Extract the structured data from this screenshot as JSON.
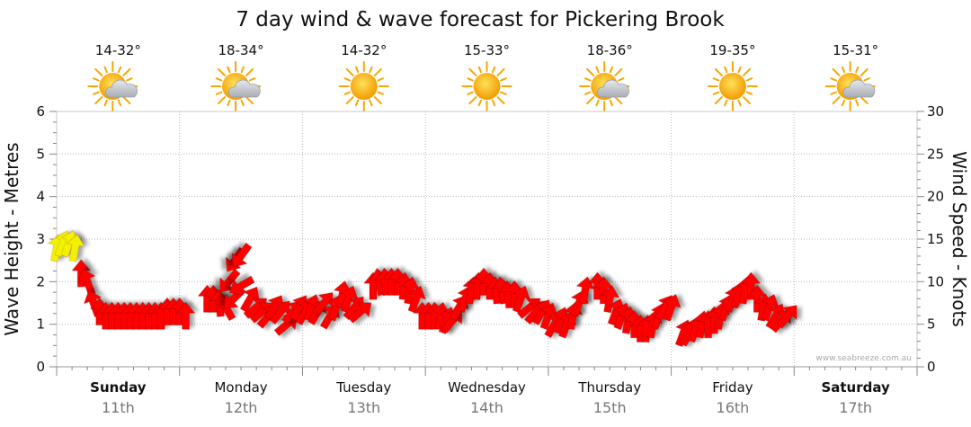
{
  "title": "7 day wind & wave forecast for Pickering Brook",
  "watermark": "www.seabreeze.com.au",
  "colors": {
    "arrow_light": "#f2f200",
    "arrow_strong": "#ff0000",
    "sun": "#f5a800",
    "cloud": "#b8bcc4"
  },
  "chart_data": {
    "type": "line",
    "title": "7 day wind & wave forecast for Pickering Brook",
    "ylabel_left": "Wave Height - Metres",
    "ylabel_right": "Wind Speed - Knots",
    "ylim_left": [
      0,
      6
    ],
    "ylim_right": [
      0,
      30
    ],
    "yticks_left": [
      "0",
      "1",
      "2",
      "3",
      "4",
      "5",
      "6"
    ],
    "yticks_right": [
      "0",
      "5",
      "10",
      "15",
      "20",
      "25",
      "30"
    ],
    "grid": true,
    "days": [
      {
        "name": "Sunday",
        "date": "11th",
        "bold": true,
        "temp": "14-32°",
        "icon": "partly-cloudy-icon"
      },
      {
        "name": "Monday",
        "date": "12th",
        "bold": false,
        "temp": "18-34°",
        "icon": "partly-cloudy-icon"
      },
      {
        "name": "Tuesday",
        "date": "13th",
        "bold": false,
        "temp": "14-32°",
        "icon": "sunny-icon"
      },
      {
        "name": "Wednesday",
        "date": "14th",
        "bold": false,
        "temp": "15-33°",
        "icon": "sunny-icon"
      },
      {
        "name": "Thursday",
        "date": "15th",
        "bold": false,
        "temp": "18-36°",
        "icon": "partly-cloudy-icon"
      },
      {
        "name": "Friday",
        "date": "16th",
        "bold": false,
        "temp": "19-35°",
        "icon": "sunny-icon"
      },
      {
        "name": "Saturday",
        "date": "17th",
        "bold": true,
        "temp": "15-31°",
        "icon": "partly-cloudy-icon"
      }
    ],
    "series": [
      {
        "name": "Wind Speed",
        "x_unit": "day",
        "points": [
          {
            "x": 0.0,
            "knots": 14,
            "dir": 190
          },
          {
            "x": 0.1,
            "knots": 14.5,
            "dir": 200
          },
          {
            "x": 0.2,
            "knots": 14.5,
            "dir": 200
          },
          {
            "x": 0.3,
            "knots": 14,
            "dir": 190
          },
          {
            "x": 0.4,
            "knots": 11,
            "dir": 180
          },
          {
            "x": 0.5,
            "knots": 10,
            "dir": 160
          },
          {
            "x": 0.6,
            "knots": 7.5,
            "dir": 160
          },
          {
            "x": 0.7,
            "knots": 6.5,
            "dir": 180
          },
          {
            "x": 0.8,
            "knots": 6,
            "dir": 180
          },
          {
            "x": 0.9,
            "knots": 6,
            "dir": 180
          },
          {
            "x": 1.0,
            "knots": 6,
            "dir": 180
          },
          {
            "x": 1.1,
            "knots": 6,
            "dir": 180
          },
          {
            "x": 1.2,
            "knots": 6,
            "dir": 180
          },
          {
            "x": 1.3,
            "knots": 6,
            "dir": 180
          },
          {
            "x": 1.4,
            "knots": 6,
            "dir": 180
          },
          {
            "x": 1.5,
            "knots": 6,
            "dir": 180
          },
          {
            "x": 1.6,
            "knots": 6,
            "dir": 180
          },
          {
            "x": 1.7,
            "knots": 6,
            "dir": 180
          },
          {
            "x": 1.8,
            "knots": 6.5,
            "dir": 180
          },
          {
            "x": 1.9,
            "knots": 6.5,
            "dir": 180
          },
          {
            "x": 2.0,
            "knots": 6.5,
            "dir": 180
          },
          {
            "x": 2.1,
            "knots": 6,
            "dir": 180
          },
          {
            "x": 2.45,
            "knots": 8,
            "dir": 180
          },
          {
            "x": 2.55,
            "knots": 8,
            "dir": 180
          },
          {
            "x": 2.65,
            "knots": 7.5,
            "dir": 175
          },
          {
            "x": 2.75,
            "knots": 7,
            "dir": 150
          },
          {
            "x": 2.8,
            "knots": 10,
            "dir": 40
          },
          {
            "x": 2.9,
            "knots": 12.5,
            "dir": 35
          },
          {
            "x": 3.0,
            "knots": 13,
            "dir": 35
          },
          {
            "x": 2.88,
            "knots": 8,
            "dir": 45
          },
          {
            "x": 3.0,
            "knots": 9.5,
            "dir": 60
          },
          {
            "x": 3.15,
            "knots": 8,
            "dir": 210
          },
          {
            "x": 3.25,
            "knots": 7,
            "dir": 230
          },
          {
            "x": 3.35,
            "knots": 6.5,
            "dir": 230
          },
          {
            "x": 3.45,
            "knots": 6,
            "dir": 220
          },
          {
            "x": 3.55,
            "knots": 7,
            "dir": 210
          },
          {
            "x": 3.65,
            "knots": 6.5,
            "dir": 220
          },
          {
            "x": 3.75,
            "knots": 5,
            "dir": 230
          },
          {
            "x": 3.85,
            "knots": 6.5,
            "dir": 220
          },
          {
            "x": 3.95,
            "knots": 7,
            "dir": 210
          },
          {
            "x": 4.05,
            "knots": 6.5,
            "dir": 210
          },
          {
            "x": 4.15,
            "knots": 7,
            "dir": 200
          },
          {
            "x": 4.25,
            "knots": 6.5,
            "dir": 210
          },
          {
            "x": 4.35,
            "knots": 7.5,
            "dir": 220
          },
          {
            "x": 4.45,
            "knots": 6,
            "dir": 210
          },
          {
            "x": 4.55,
            "knots": 7,
            "dir": 200
          },
          {
            "x": 4.65,
            "knots": 8.5,
            "dir": 190
          },
          {
            "x": 4.75,
            "knots": 8,
            "dir": 200
          },
          {
            "x": 4.85,
            "knots": 7,
            "dir": 220
          },
          {
            "x": 4.95,
            "knots": 6.5,
            "dir": 230
          },
          {
            "x": 5.15,
            "knots": 9.5,
            "dir": 180
          },
          {
            "x": 5.25,
            "knots": 10,
            "dir": 170
          },
          {
            "x": 5.35,
            "knots": 10,
            "dir": 175
          },
          {
            "x": 5.45,
            "knots": 10,
            "dir": 180
          },
          {
            "x": 5.55,
            "knots": 10,
            "dir": 180
          },
          {
            "x": 5.65,
            "knots": 9.5,
            "dir": 185
          },
          {
            "x": 5.75,
            "knots": 9,
            "dir": 190
          },
          {
            "x": 5.85,
            "knots": 8,
            "dir": 200
          },
          {
            "x": 5.95,
            "knots": 6,
            "dir": 180
          },
          {
            "x": 6.05,
            "knots": 6,
            "dir": 180
          },
          {
            "x": 6.15,
            "knots": 6,
            "dir": 180
          },
          {
            "x": 6.25,
            "knots": 6,
            "dir": 190
          },
          {
            "x": 6.35,
            "knots": 5.5,
            "dir": 200
          },
          {
            "x": 6.45,
            "knots": 5.5,
            "dir": 220
          },
          {
            "x": 6.55,
            "knots": 7,
            "dir": 210
          },
          {
            "x": 6.65,
            "knots": 8,
            "dir": 200
          },
          {
            "x": 6.75,
            "knots": 9,
            "dir": 190
          },
          {
            "x": 6.85,
            "knots": 9.5,
            "dir": 185
          },
          {
            "x": 6.95,
            "knots": 10,
            "dir": 180
          },
          {
            "x": 7.05,
            "knots": 9.5,
            "dir": 180
          },
          {
            "x": 7.15,
            "knots": 9,
            "dir": 175
          },
          {
            "x": 7.25,
            "knots": 9,
            "dir": 170
          },
          {
            "x": 7.35,
            "knots": 8.5,
            "dir": 175
          },
          {
            "x": 7.45,
            "knots": 8.5,
            "dir": 180
          },
          {
            "x": 7.55,
            "knots": 8,
            "dir": 200
          },
          {
            "x": 7.7,
            "knots": 7,
            "dir": 230
          },
          {
            "x": 7.8,
            "knots": 6.5,
            "dir": 220
          },
          {
            "x": 7.9,
            "knots": 6.5,
            "dir": 210
          },
          {
            "x": 8.0,
            "knots": 6,
            "dir": 200
          },
          {
            "x": 8.1,
            "knots": 5,
            "dir": 210
          },
          {
            "x": 8.2,
            "knots": 5.5,
            "dir": 200
          },
          {
            "x": 8.3,
            "knots": 5,
            "dir": 200
          },
          {
            "x": 8.4,
            "knots": 6,
            "dir": 190
          },
          {
            "x": 8.5,
            "knots": 7.5,
            "dir": 200
          },
          {
            "x": 8.6,
            "knots": 9,
            "dir": 190
          },
          {
            "x": 8.8,
            "knots": 9.5,
            "dir": 180
          },
          {
            "x": 8.9,
            "knots": 9,
            "dir": 180
          },
          {
            "x": 9.0,
            "knots": 8,
            "dir": 190
          },
          {
            "x": 9.1,
            "knots": 6.5,
            "dir": 200
          },
          {
            "x": 9.2,
            "knots": 6,
            "dir": 200
          },
          {
            "x": 9.3,
            "knots": 5.5,
            "dir": 190
          },
          {
            "x": 9.4,
            "knots": 5,
            "dir": 180
          },
          {
            "x": 9.5,
            "knots": 4.5,
            "dir": 180
          },
          {
            "x": 9.6,
            "knots": 4.5,
            "dir": 185
          },
          {
            "x": 9.7,
            "knots": 5,
            "dir": 190
          },
          {
            "x": 9.8,
            "knots": 6,
            "dir": 200
          },
          {
            "x": 9.9,
            "knots": 7,
            "dir": 210
          },
          {
            "x": 10.0,
            "knots": 7,
            "dir": 200
          },
          {
            "x": 10.2,
            "knots": 4,
            "dir": 200
          },
          {
            "x": 10.3,
            "knots": 4,
            "dir": 210
          },
          {
            "x": 10.4,
            "knots": 4.5,
            "dir": 200
          },
          {
            "x": 10.5,
            "knots": 5,
            "dir": 190
          },
          {
            "x": 10.6,
            "knots": 5,
            "dir": 180
          },
          {
            "x": 10.7,
            "knots": 5.5,
            "dir": 180
          },
          {
            "x": 10.8,
            "knots": 6,
            "dir": 190
          },
          {
            "x": 10.9,
            "knots": 7,
            "dir": 200
          },
          {
            "x": 11.0,
            "knots": 8,
            "dir": 200
          },
          {
            "x": 11.1,
            "knots": 8.5,
            "dir": 200
          },
          {
            "x": 11.2,
            "knots": 9,
            "dir": 190
          },
          {
            "x": 11.3,
            "knots": 9.5,
            "dir": 180
          },
          {
            "x": 11.4,
            "knots": 8,
            "dir": 180
          },
          {
            "x": 11.5,
            "knots": 7,
            "dir": 190
          },
          {
            "x": 11.6,
            "knots": 7,
            "dir": 200
          },
          {
            "x": 11.7,
            "knots": 6,
            "dir": 210
          },
          {
            "x": 11.8,
            "knots": 5.5,
            "dir": 220
          },
          {
            "x": 11.9,
            "knots": 6,
            "dir": 220
          }
        ]
      }
    ],
    "x_range_days": [
      0,
      12.1
    ]
  }
}
